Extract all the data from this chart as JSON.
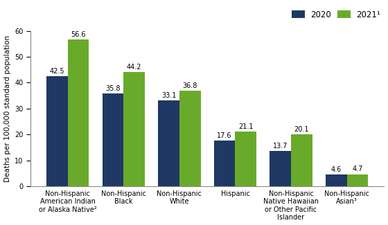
{
  "categories": [
    "Non-Hispanic\nAmerican Indian\nor Alaska Native²",
    "Non-Hispanic\nBlack",
    "Non-Hispanic\nWhite",
    "Hispanic",
    "Non-Hispanic\nNative Hawaiian\nor Other Pacific\nIslander",
    "Non-Hispanic\nAsian³"
  ],
  "values_2020": [
    42.5,
    35.8,
    33.1,
    17.6,
    13.7,
    4.6
  ],
  "values_2021": [
    56.6,
    44.2,
    36.8,
    21.1,
    20.1,
    4.7
  ],
  "color_2020": "#1f3864",
  "color_2021": "#6aaa2a",
  "ylabel": "Deaths per 100,000 standard population",
  "legend_2020": "2020",
  "legend_2021": "2021¹",
  "ylim": [
    0,
    60
  ],
  "yticks": [
    0,
    10,
    20,
    30,
    40,
    50,
    60
  ],
  "bar_width": 0.38,
  "label_fontsize": 7.0,
  "tick_fontsize": 7.0,
  "ylabel_fontsize": 7.5,
  "legend_fontsize": 8.5
}
